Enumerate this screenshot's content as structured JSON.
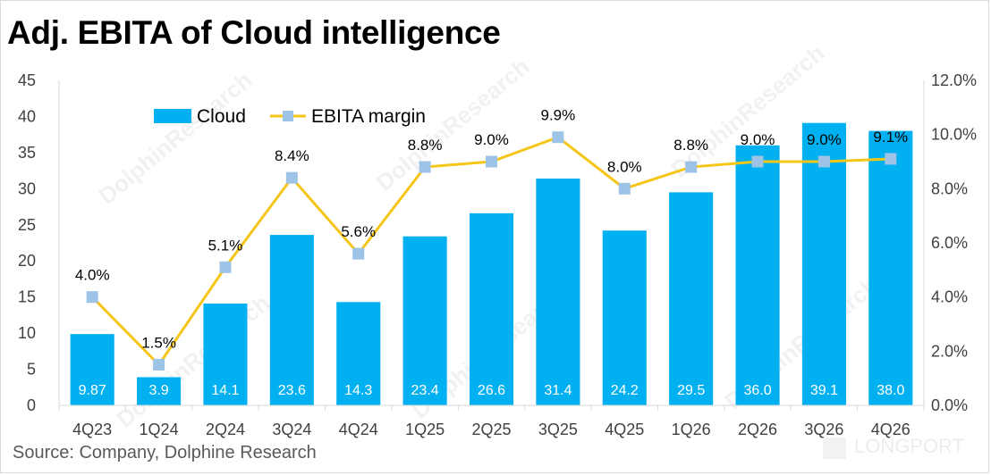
{
  "title": "Adj. EBITA of Cloud intelligence",
  "source": "Source:  Company, Dolphine Research",
  "watermarks": {
    "text": "DolphinResearch",
    "brand": "LONGPORT"
  },
  "colors": {
    "bar": "#00b0f0",
    "line": "#f5c518",
    "marker": "#9dc3e6",
    "grid": "#d9d9d9"
  },
  "chart_data": {
    "type": "bar",
    "categories": [
      "4Q23",
      "1Q24",
      "2Q24",
      "3Q24",
      "4Q24",
      "1Q25",
      "2Q25",
      "3Q25",
      "4Q25",
      "1Q26",
      "2Q26",
      "3Q26",
      "4Q26"
    ],
    "series": [
      {
        "name": "Cloud",
        "type": "bar",
        "axis": "left",
        "values": [
          9.87,
          3.9,
          14.1,
          23.6,
          14.3,
          23.4,
          26.6,
          31.4,
          24.2,
          29.5,
          36.0,
          39.1,
          38.0
        ],
        "labels": [
          "9.87",
          "3.9",
          "14.1",
          "23.6",
          "14.3",
          "23.4",
          "26.6",
          "31.4",
          "24.2",
          "29.5",
          "36.0",
          "39.1",
          "38.0"
        ]
      },
      {
        "name": "EBITA margin",
        "type": "line",
        "axis": "right",
        "values": [
          4.0,
          1.5,
          5.1,
          8.4,
          5.6,
          8.8,
          9.0,
          9.9,
          8.0,
          8.8,
          9.0,
          9.0,
          9.1
        ],
        "labels": [
          "4.0%",
          "1.5%",
          "5.1%",
          "8.4%",
          "5.6%",
          "8.8%",
          "9.0%",
          "9.9%",
          "8.0%",
          "8.8%",
          "9.0%",
          "9.0%",
          "9.1%"
        ]
      }
    ],
    "y_left": {
      "min": 0,
      "max": 45,
      "ticks": [
        "0",
        "5",
        "10",
        "15",
        "20",
        "25",
        "30",
        "35",
        "40",
        "45"
      ]
    },
    "y_right": {
      "min": 0,
      "max": 12,
      "ticks": [
        "0.0%",
        "2.0%",
        "4.0%",
        "6.0%",
        "8.0%",
        "10.0%",
        "12.0%"
      ]
    },
    "legend": {
      "placement": "top-left"
    },
    "grid": false
  }
}
